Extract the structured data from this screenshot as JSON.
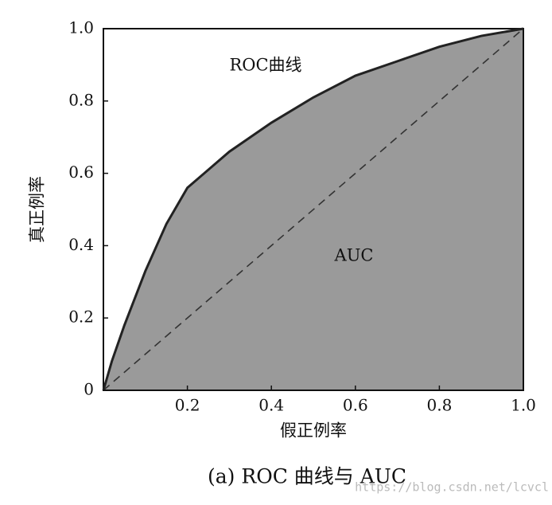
{
  "chart_data": {
    "type": "line",
    "title": "(a) ROC 曲线与 AUC",
    "x_label": "假正例率",
    "y_label": "真正例率",
    "annotations": [
      "ROC曲线",
      "AUC"
    ],
    "watermark": "https://blog.csdn.net/lcvcl",
    "x": [
      0,
      0.02,
      0.05,
      0.1,
      0.15,
      0.2,
      0.3,
      0.4,
      0.5,
      0.6,
      0.7,
      0.8,
      0.9,
      1
    ],
    "series": [
      {
        "color": "#222222",
        "values": [
          0,
          0.08,
          0.18,
          0.33,
          0.46,
          0.56,
          0.66,
          0.74,
          0.81,
          0.87,
          0.91,
          0.95,
          0.98,
          1
        ]
      }
    ],
    "diagonal": {
      "x": [
        0,
        1
      ],
      "values": [
        0,
        1
      ]
    },
    "area_color": "#9a9a9a",
    "xlim": [
      0,
      1
    ],
    "ylim": [
      0,
      1
    ],
    "xticks": [
      0.2,
      0.4,
      0.6,
      0.8,
      {
        "value": 1,
        "label": "1.0"
      }
    ],
    "yticks": [
      0,
      0.2,
      0.4,
      0.6,
      0.8,
      {
        "value": 1,
        "label": "1.0"
      }
    ]
  }
}
